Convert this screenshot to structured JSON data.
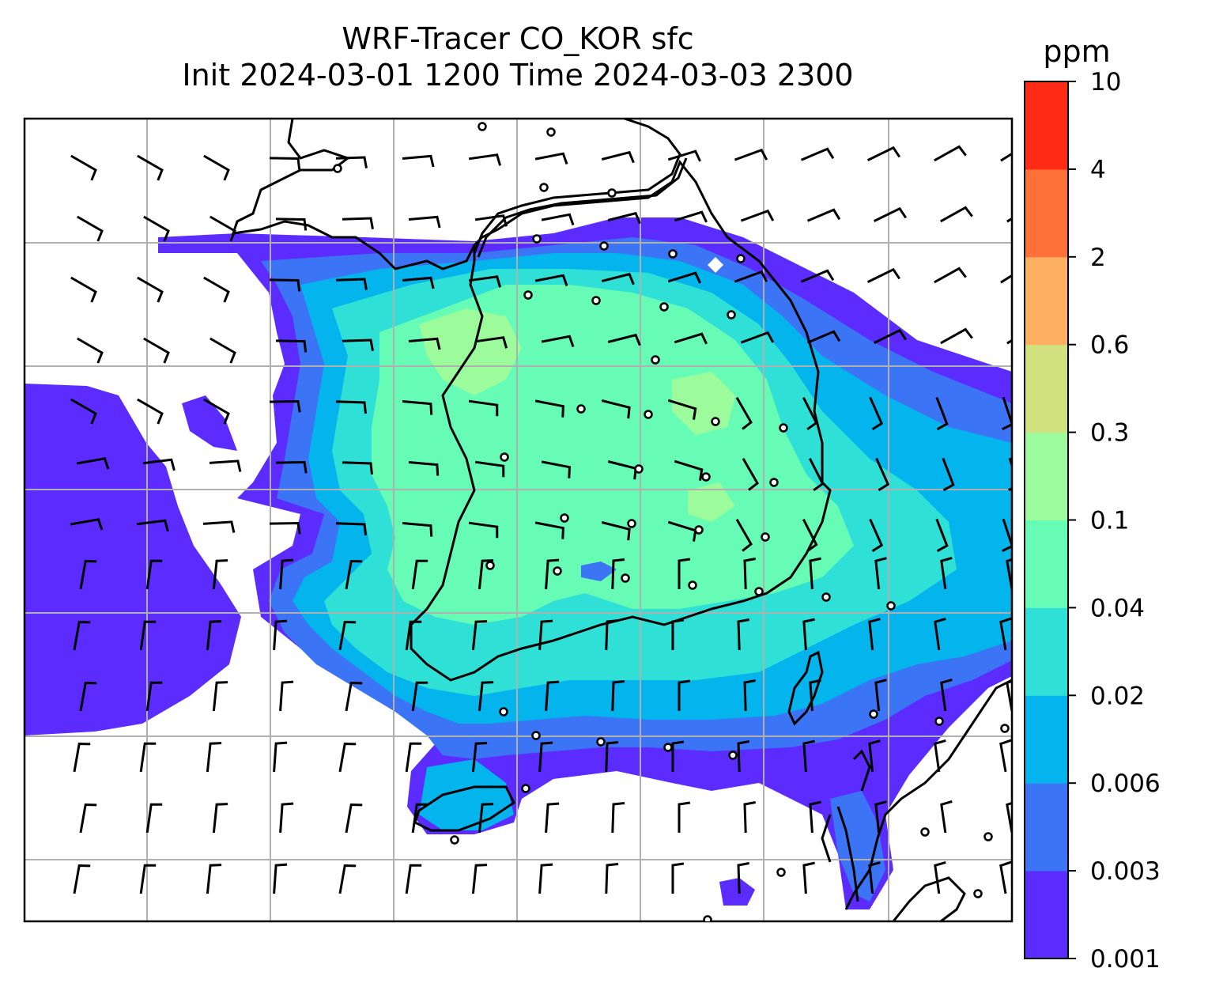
{
  "title": {
    "line1": "WRF-Tracer CO_KOR sfc",
    "line2": "Init 2024-03-01 1200 Time 2024-03-03 2300"
  },
  "colorbar": {
    "unit": "ppm",
    "levels": [
      "0.001",
      "0.003",
      "0.006",
      "0.02",
      "0.04",
      "0.1",
      "0.3",
      "0.6",
      "2",
      "4",
      "10"
    ],
    "colors": [
      "#5b2bff",
      "#3b74f5",
      "#03b4ed",
      "#2fe0d6",
      "#67fcb5",
      "#9cfb9a",
      "#d2e27f",
      "#fdb062",
      "#ff7137",
      "#ff2b14"
    ]
  },
  "map": {
    "region": "Korean Peninsula",
    "gridlines": true,
    "coastlines": true,
    "wind_barbs": true,
    "calm_station_markers": true
  }
}
